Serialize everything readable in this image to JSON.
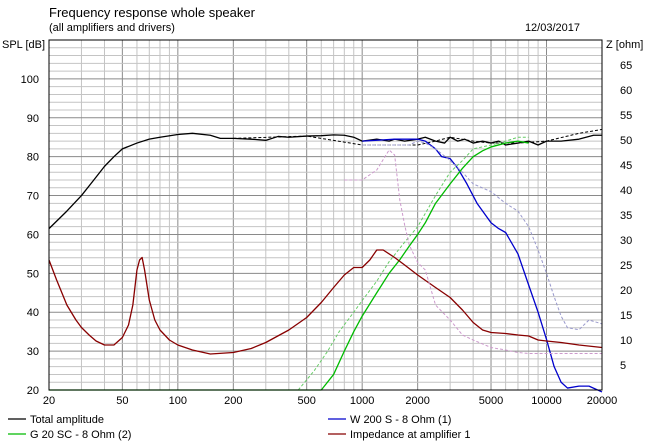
{
  "header": {
    "title": "Frequency response whole speaker",
    "subtitle": "(all amplifiers and drivers)",
    "date": "12/03/2017"
  },
  "axes": {
    "left_label": "SPL [dB]",
    "right_label": "Z [ohm]"
  },
  "legend": [
    {
      "label": "Total amplitude",
      "color": "#000000"
    },
    {
      "label": "W 200 S - 8 Ohm (1)",
      "color": "#0000cc"
    },
    {
      "label": "G 20 SC - 8 Ohm (2)",
      "color": "#00bb00"
    },
    {
      "label": "Impedance at amplifier 1",
      "color": "#880000"
    }
  ],
  "chart_data": {
    "type": "line",
    "title": "Frequency response whole speaker",
    "subtitle": "(all amplifiers and drivers)",
    "xlabel": "",
    "ylabel": "SPL [dB]",
    "y2label": "Z [ohm]",
    "x_scale": "log",
    "xlim": [
      20,
      20000
    ],
    "ylim": [
      20,
      110
    ],
    "y2lim": [
      0,
      70
    ],
    "x_ticks": [
      20,
      50,
      100,
      200,
      500,
      1000,
      2000,
      5000,
      10000,
      20000
    ],
    "x_tick_labels": [
      "20",
      "50",
      "100",
      "200",
      "500",
      "1000",
      "2000",
      "5000",
      "10000",
      "20000"
    ],
    "y_ticks": [
      20,
      30,
      40,
      50,
      60,
      70,
      80,
      90,
      100
    ],
    "y2_ticks": [
      5,
      10,
      15,
      20,
      25,
      30,
      35,
      40,
      45,
      50,
      55,
      60,
      65
    ],
    "grid": true,
    "legend_position": "bottom",
    "series": [
      {
        "name": "Total amplitude",
        "axis": "left",
        "color": "#000000",
        "style": "solid",
        "points": [
          [
            20,
            61.5
          ],
          [
            25,
            66
          ],
          [
            30,
            70
          ],
          [
            35,
            74
          ],
          [
            40,
            77.5
          ],
          [
            45,
            80
          ],
          [
            50,
            82
          ],
          [
            60,
            83.5
          ],
          [
            70,
            84.5
          ],
          [
            80,
            85
          ],
          [
            100,
            85.7
          ],
          [
            120,
            86
          ],
          [
            150,
            85.5
          ],
          [
            170,
            84.7
          ],
          [
            200,
            84.7
          ],
          [
            250,
            84.5
          ],
          [
            300,
            84.2
          ],
          [
            350,
            85.2
          ],
          [
            400,
            85
          ],
          [
            500,
            85.3
          ],
          [
            600,
            85.4
          ],
          [
            700,
            85.6
          ],
          [
            800,
            85.5
          ],
          [
            900,
            85
          ],
          [
            1000,
            84
          ],
          [
            1200,
            84.5
          ],
          [
            1400,
            84
          ],
          [
            1500,
            84.5
          ],
          [
            1700,
            84
          ],
          [
            2000,
            84.5
          ],
          [
            2200,
            85
          ],
          [
            2500,
            84
          ],
          [
            2800,
            83.5
          ],
          [
            3000,
            85
          ],
          [
            3300,
            84
          ],
          [
            3600,
            84.5
          ],
          [
            4000,
            83.5
          ],
          [
            4500,
            84
          ],
          [
            5000,
            83.5
          ],
          [
            5500,
            84
          ],
          [
            6000,
            83
          ],
          [
            7000,
            83.5
          ],
          [
            8000,
            84
          ],
          [
            9000,
            83
          ],
          [
            10000,
            84
          ],
          [
            12000,
            84
          ],
          [
            15000,
            84.5
          ],
          [
            18000,
            85.5
          ],
          [
            20000,
            85.5
          ]
        ]
      },
      {
        "name": "Total amplitude (dashed)",
        "axis": "left",
        "color": "#000000",
        "style": "dashed",
        "points": [
          [
            200,
            84.7
          ],
          [
            500,
            85.3
          ],
          [
            1000,
            83
          ],
          [
            1500,
            83
          ],
          [
            2000,
            83
          ],
          [
            2500,
            84
          ],
          [
            3000,
            85
          ],
          [
            4000,
            84
          ],
          [
            5000,
            83.5
          ],
          [
            7000,
            83.5
          ],
          [
            10000,
            84
          ],
          [
            15000,
            86
          ],
          [
            20000,
            87
          ]
        ]
      },
      {
        "name": "W 200 S - 8 Ohm (1)",
        "axis": "left",
        "color": "#0000cc",
        "style": "solid",
        "points": [
          [
            1000,
            84
          ],
          [
            1500,
            84.5
          ],
          [
            2000,
            84.5
          ],
          [
            2200,
            84
          ],
          [
            2500,
            82
          ],
          [
            2700,
            80
          ],
          [
            3000,
            79.5
          ],
          [
            3300,
            77
          ],
          [
            3700,
            73
          ],
          [
            4200,
            68
          ],
          [
            5000,
            63
          ],
          [
            5500,
            61.5
          ],
          [
            6000,
            60.5
          ],
          [
            7000,
            55
          ],
          [
            8000,
            47
          ],
          [
            9000,
            40
          ],
          [
            10000,
            33
          ],
          [
            11000,
            26
          ],
          [
            12000,
            22
          ],
          [
            13000,
            20.5
          ],
          [
            15000,
            21
          ],
          [
            17000,
            21
          ],
          [
            20000,
            19.5
          ]
        ]
      },
      {
        "name": "W 200 S - 8 Ohm (1) (dashed)",
        "axis": "left",
        "color": "#9999cc",
        "style": "dashed",
        "points": [
          [
            1000,
            83
          ],
          [
            1300,
            83
          ],
          [
            1500,
            83
          ],
          [
            1800,
            83
          ],
          [
            2000,
            84
          ],
          [
            2200,
            83.5
          ],
          [
            2500,
            82
          ],
          [
            3000,
            79
          ],
          [
            3500,
            76
          ],
          [
            4000,
            73
          ],
          [
            5000,
            71
          ],
          [
            6000,
            68
          ],
          [
            7000,
            66
          ],
          [
            8000,
            62
          ],
          [
            9000,
            56
          ],
          [
            10000,
            50
          ],
          [
            11000,
            44
          ],
          [
            12000,
            39
          ],
          [
            13000,
            36
          ],
          [
            15000,
            35.5
          ],
          [
            17000,
            38
          ],
          [
            20000,
            37
          ]
        ]
      },
      {
        "name": "G 20 SC - 8 Ohm (2)",
        "axis": "left",
        "color": "#00bb00",
        "style": "solid",
        "points": [
          [
            20,
            20
          ],
          [
            600,
            20
          ],
          [
            700,
            24
          ],
          [
            800,
            30
          ],
          [
            900,
            35
          ],
          [
            1000,
            39
          ],
          [
            1200,
            45
          ],
          [
            1400,
            50
          ],
          [
            1600,
            53.5
          ],
          [
            1800,
            57
          ],
          [
            2000,
            60
          ],
          [
            2200,
            63
          ],
          [
            2500,
            68
          ],
          [
            3000,
            73
          ],
          [
            3500,
            77
          ],
          [
            4000,
            80
          ],
          [
            4500,
            81.5
          ],
          [
            5000,
            82.5
          ],
          [
            6000,
            83.5
          ],
          [
            7000,
            84
          ],
          [
            8000,
            83.5
          ]
        ]
      },
      {
        "name": "G 20 SC - 8 Ohm (2) (dashed)",
        "axis": "left",
        "color": "#66cc66",
        "style": "dashed",
        "points": [
          [
            450,
            20
          ],
          [
            550,
            25
          ],
          [
            650,
            30
          ],
          [
            750,
            35
          ],
          [
            900,
            40
          ],
          [
            1000,
            43
          ],
          [
            1200,
            48
          ],
          [
            1400,
            53
          ],
          [
            1700,
            58
          ],
          [
            2000,
            62
          ],
          [
            2500,
            70
          ],
          [
            3000,
            76
          ],
          [
            3500,
            79
          ],
          [
            4000,
            82
          ],
          [
            5000,
            83
          ],
          [
            6000,
            84
          ],
          [
            7000,
            85
          ],
          [
            8000,
            85
          ]
        ]
      },
      {
        "name": "Impedance at amplifier 1",
        "axis": "right",
        "color": "#880000",
        "style": "solid",
        "points": [
          [
            20,
            26
          ],
          [
            22,
            22
          ],
          [
            25,
            17
          ],
          [
            28,
            14
          ],
          [
            30,
            12.5
          ],
          [
            33,
            11
          ],
          [
            36,
            9.8
          ],
          [
            40,
            9
          ],
          [
            45,
            9
          ],
          [
            50,
            10.5
          ],
          [
            54,
            13
          ],
          [
            57,
            17
          ],
          [
            60,
            24
          ],
          [
            62,
            26
          ],
          [
            64,
            26.5
          ],
          [
            66,
            24
          ],
          [
            70,
            18
          ],
          [
            75,
            14
          ],
          [
            80,
            12
          ],
          [
            90,
            10
          ],
          [
            100,
            9
          ],
          [
            120,
            8
          ],
          [
            150,
            7.2
          ],
          [
            200,
            7.5
          ],
          [
            250,
            8.3
          ],
          [
            300,
            9.5
          ],
          [
            400,
            12
          ],
          [
            500,
            14.5
          ],
          [
            600,
            17.5
          ],
          [
            700,
            20.5
          ],
          [
            800,
            23
          ],
          [
            900,
            24.5
          ],
          [
            1000,
            24.5
          ],
          [
            1100,
            26
          ],
          [
            1200,
            28
          ],
          [
            1300,
            28
          ],
          [
            1500,
            26.5
          ],
          [
            1700,
            25
          ],
          [
            2000,
            23
          ],
          [
            2500,
            20.5
          ],
          [
            3000,
            18.5
          ],
          [
            3500,
            16
          ],
          [
            4000,
            13.5
          ],
          [
            4500,
            12
          ],
          [
            5000,
            11.5
          ],
          [
            6000,
            11.3
          ],
          [
            7000,
            11
          ],
          [
            8000,
            10.8
          ],
          [
            9000,
            10
          ],
          [
            10000,
            9.8
          ],
          [
            12000,
            9.5
          ],
          [
            15000,
            9
          ],
          [
            20000,
            8.5
          ]
        ]
      },
      {
        "name": "Impedance at amplifier 1 (dashed)",
        "axis": "right",
        "color": "#cc99cc",
        "style": "dashed",
        "points": [
          [
            800,
            42
          ],
          [
            1000,
            42
          ],
          [
            1200,
            44
          ],
          [
            1400,
            48
          ],
          [
            1500,
            47
          ],
          [
            1600,
            38
          ],
          [
            1700,
            33
          ],
          [
            1800,
            29
          ],
          [
            2000,
            25.5
          ],
          [
            2200,
            24
          ],
          [
            2500,
            17
          ],
          [
            3000,
            14
          ],
          [
            3500,
            11
          ],
          [
            4000,
            10
          ],
          [
            5000,
            8.5
          ],
          [
            6000,
            8
          ],
          [
            7000,
            7.5
          ],
          [
            8000,
            7.3
          ],
          [
            10000,
            7.3
          ],
          [
            15000,
            7.3
          ],
          [
            20000,
            7.3
          ]
        ]
      }
    ]
  }
}
